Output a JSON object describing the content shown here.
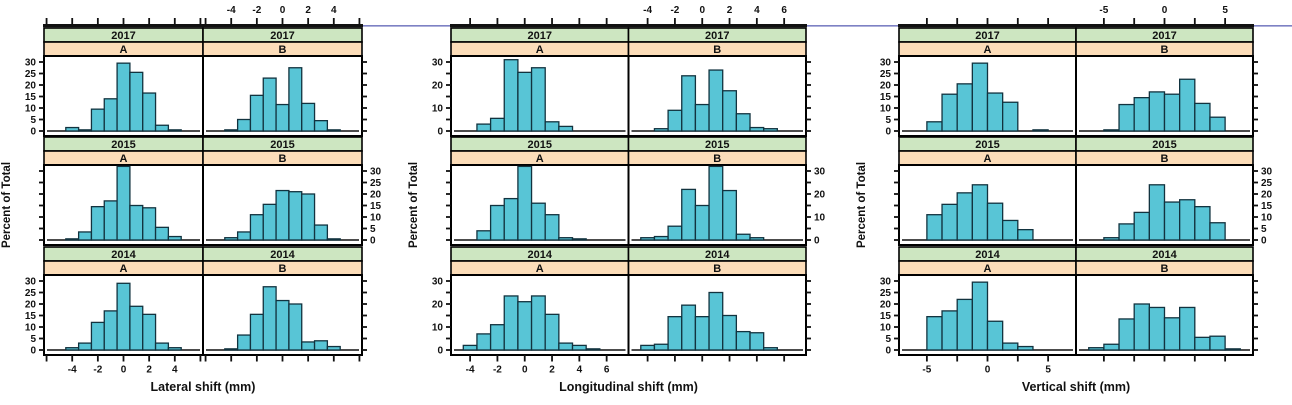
{
  "figure": {
    "ylabel": "Percent of Total",
    "rows": [
      "2017",
      "2015",
      "2014"
    ],
    "cols": [
      "A",
      "B"
    ],
    "colors": {
      "bar_fill": "#58c5d6",
      "bar_stroke": "#12333f",
      "strip_year_fill": "#cde6c1",
      "strip_group_fill": "#fcddb9",
      "frame": "#000000",
      "rule": "#7d81c4",
      "text": "#111111"
    }
  },
  "chart_data": [
    {
      "type": "bar",
      "subtype": "trellis-histogram",
      "xlabel": "Lateral shift (mm)",
      "ylabel": "Percent of Total",
      "rows": [
        "2017",
        "2015",
        "2014"
      ],
      "cols": [
        "A",
        "B"
      ],
      "xlim": [
        -6.2,
        6.2
      ],
      "xticks": [
        -6,
        -4,
        -2,
        0,
        2,
        4,
        6
      ],
      "xtick_labels": [
        -4,
        -2,
        0,
        2,
        4
      ],
      "ylim": [
        0,
        33
      ],
      "ytick_step": 5,
      "ytick_labels": [
        0,
        5,
        10,
        15,
        20,
        25,
        30
      ],
      "ylabel_side_by_row": [
        "left",
        "right",
        "left"
      ],
      "bin_width": 1,
      "cells": {
        "2017": {
          "A": {
            "x0": -4.5,
            "percent": [
              1.5,
              0.5,
              9.5,
              14,
              29.5,
              25.5,
              16.5,
              2.5,
              0.5
            ]
          },
          "B": {
            "x0": -4.5,
            "percent": [
              0.5,
              5,
              15.5,
              23,
              11.5,
              27.5,
              12,
              4.5,
              0.5
            ]
          }
        },
        "2015": {
          "A": {
            "x0": -4.5,
            "percent": [
              0.5,
              3.5,
              14.5,
              17,
              32,
              15,
              14,
              5.5,
              1.5
            ]
          },
          "B": {
            "x0": -4.5,
            "percent": [
              1,
              3.5,
              11,
              15.5,
              21.5,
              21,
              20,
              6.5,
              0.5
            ]
          }
        },
        "2014": {
          "A": {
            "x0": -4.5,
            "percent": [
              1,
              3,
              12,
              17,
              29,
              19,
              15.5,
              3,
              1
            ]
          },
          "B": {
            "x0": -4.5,
            "percent": [
              0.5,
              6.5,
              15.5,
              27.5,
              21.5,
              20,
              3.5,
              4,
              1.5
            ]
          }
        }
      }
    },
    {
      "type": "bar",
      "subtype": "trellis-histogram",
      "xlabel": "Longitudinal shift (mm)",
      "ylabel": "Percent of Total",
      "rows": [
        "2017",
        "2015",
        "2014"
      ],
      "cols": [
        "A",
        "B"
      ],
      "xlim": [
        -5.4,
        7.6
      ],
      "xticks": [
        -4,
        -2,
        0,
        2,
        4,
        6
      ],
      "xtick_labels": [
        -4,
        -2,
        0,
        2,
        4,
        6
      ],
      "ylim": [
        0,
        33
      ],
      "ytick_step": 5,
      "ytick_labels": [
        0,
        10,
        20,
        30
      ],
      "ylabel_side_by_row": [
        "left",
        "right",
        "left"
      ],
      "bin_width": 1,
      "cells": {
        "2017": {
          "A": {
            "x0": -3.5,
            "percent": [
              3,
              5.5,
              31,
              25.5,
              27.5,
              4,
              2
            ]
          },
          "B": {
            "x0": -3.5,
            "percent": [
              1,
              9,
              24,
              11.5,
              26.5,
              17.5,
              7.5,
              1.5,
              1
            ]
          }
        },
        "2015": {
          "A": {
            "x0": -3.5,
            "percent": [
              4,
              15,
              18,
              32,
              16,
              11,
              1,
              0.5
            ]
          },
          "B": {
            "x0": -4.5,
            "percent": [
              1,
              1.5,
              6,
              22,
              15,
              32,
              21.5,
              2.5,
              1
            ]
          }
        },
        "2014": {
          "A": {
            "x0": -4.5,
            "percent": [
              2,
              7,
              11,
              23.5,
              21,
              23.5,
              15.5,
              3,
              2,
              0.5
            ]
          },
          "B": {
            "x0": -4.5,
            "percent": [
              2,
              2.5,
              14.5,
              19.5,
              14.5,
              25,
              15,
              8,
              7.5,
              1
            ]
          }
        }
      }
    },
    {
      "type": "bar",
      "subtype": "trellis-histogram",
      "xlabel": "Vertical shift (mm)",
      "ylabel": "Percent of Total",
      "rows": [
        "2017",
        "2015",
        "2014"
      ],
      "cols": [
        "A",
        "B"
      ],
      "xlim": [
        -7.3,
        7.3
      ],
      "xticks": [
        -5,
        -2.5,
        0,
        2.5,
        5
      ],
      "xtick_labels": [
        -5,
        0,
        5
      ],
      "ylim": [
        0,
        33
      ],
      "ytick_step": 5,
      "ytick_labels": [
        0,
        5,
        10,
        15,
        20,
        25,
        30
      ],
      "ylabel_side_by_row": [
        "left",
        "right",
        "left"
      ],
      "bin_width": 1.25,
      "cells": {
        "2017": {
          "A": {
            "x0": -5,
            "percent": [
              4,
              16,
              20.5,
              29.5,
              16.5,
              12.5,
              0,
              0.5
            ]
          },
          "B": {
            "x0": -5,
            "percent": [
              0.5,
              11.5,
              14.5,
              17,
              16,
              22.5,
              12,
              6
            ]
          }
        },
        "2015": {
          "A": {
            "x0": -5,
            "percent": [
              11,
              15.5,
              20.5,
              24,
              16,
              8.5,
              4.5
            ]
          },
          "B": {
            "x0": -5,
            "percent": [
              1,
              7,
              12,
              24,
              16.5,
              17.5,
              14.5,
              7.5
            ]
          }
        },
        "2014": {
          "A": {
            "x0": -5,
            "percent": [
              14.5,
              17,
              22,
              29.5,
              12.5,
              3,
              1.5
            ]
          },
          "B": {
            "x0": -6.25,
            "percent": [
              1,
              2.5,
              13.5,
              20,
              18.5,
              14,
              18.5,
              5.5,
              6,
              0.5
            ]
          }
        }
      }
    }
  ]
}
